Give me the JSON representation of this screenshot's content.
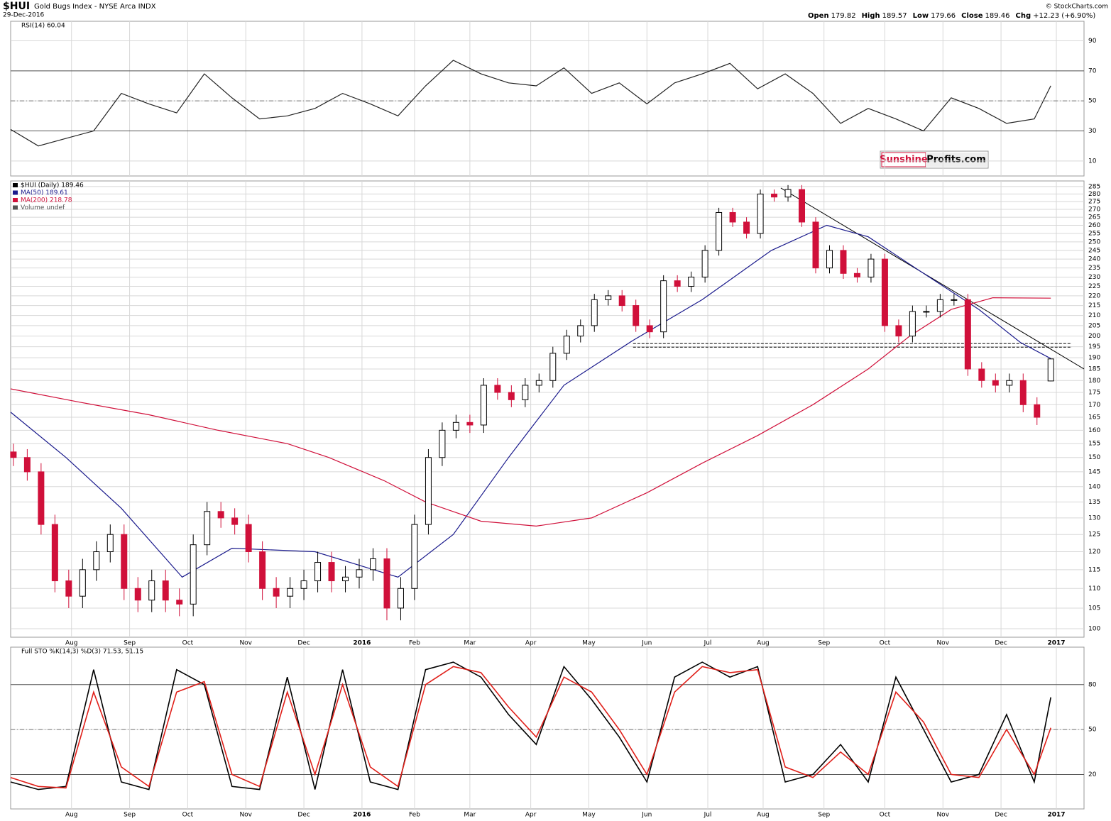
{
  "header": {
    "symbol": "$HUI",
    "name": "Gold Bugs Index - NYSE Arca INDX",
    "date": "29-Dec-2016",
    "quote": [
      [
        "Open",
        "179.82"
      ],
      [
        "High",
        "189.57"
      ],
      [
        "Low",
        "179.66"
      ],
      [
        "Close",
        "189.46"
      ],
      [
        "Chg",
        "+12.23 (+6.90%)"
      ]
    ],
    "source": "© StockCharts.com"
  },
  "watermark": [
    "Sunshine",
    "Profits.com"
  ],
  "chart_data": [
    {
      "type": "line",
      "title": "RSI(14) 60.04",
      "xlim": [
        0,
        388
      ],
      "ylim": [
        0,
        103
      ],
      "yticks": [
        10,
        30,
        50,
        70,
        90
      ],
      "levels": [
        30,
        50,
        70
      ],
      "series": [
        {
          "color": "#222222",
          "x": [
            0,
            10,
            20,
            30,
            40,
            50,
            60,
            70,
            80,
            90,
            100,
            110,
            120,
            130,
            140,
            150,
            160,
            170,
            180,
            190,
            200,
            210,
            220,
            230,
            240,
            250,
            260,
            270,
            280,
            290,
            300,
            310,
            320,
            330,
            340,
            350,
            360,
            370,
            376
          ],
          "values": [
            31,
            20,
            25,
            30,
            55,
            48,
            42,
            68,
            52,
            38,
            40,
            45,
            55,
            48,
            40,
            60,
            77,
            68,
            62,
            60,
            72,
            55,
            62,
            48,
            62,
            68,
            75,
            58,
            68,
            55,
            35,
            45,
            38,
            30,
            52,
            45,
            35,
            38,
            60.04
          ]
        }
      ]
    },
    {
      "type": "candlestick",
      "log_scale": true,
      "grid": true,
      "xlim": [
        0,
        388
      ],
      "ylim": [
        98,
        288.8
      ],
      "xticks": [
        {
          "value": 22,
          "label": "Aug"
        },
        {
          "value": 43,
          "label": "Sep"
        },
        {
          "value": 64,
          "label": "Oct"
        },
        {
          "value": 85,
          "label": "Nov"
        },
        {
          "value": 106,
          "label": "Dec"
        },
        {
          "value": 127,
          "label": "2016"
        },
        {
          "value": 146,
          "label": "Feb"
        },
        {
          "value": 166,
          "label": "Mar"
        },
        {
          "value": 188,
          "label": "Apr"
        },
        {
          "value": 209,
          "label": "May"
        },
        {
          "value": 230,
          "label": "Jun"
        },
        {
          "value": 252,
          "label": "Jul"
        },
        {
          "value": 272,
          "label": "Aug"
        },
        {
          "value": 294,
          "label": "Sep"
        },
        {
          "value": 316,
          "label": "Oct"
        },
        {
          "value": 337,
          "label": "Nov"
        },
        {
          "value": 358,
          "label": "Dec"
        },
        {
          "value": 378,
          "label": "2017"
        }
      ],
      "yticks": [
        100,
        105,
        110,
        115,
        120,
        125,
        130,
        135,
        140,
        145,
        150,
        155,
        160,
        165,
        170,
        175,
        180,
        185,
        190,
        195,
        200,
        205,
        210,
        215,
        220,
        225,
        230,
        235,
        240,
        245,
        250,
        255,
        260,
        265,
        270,
        275,
        280,
        285
      ],
      "candles": {
        "name": "$HUI (Daily) 189.46",
        "up_color": "#ffffff",
        "down_color": "#d0103a",
        "x": [
          1,
          6,
          11,
          16,
          21,
          26,
          31,
          36,
          41,
          46,
          51,
          56,
          61,
          66,
          71,
          76,
          81,
          86,
          91,
          96,
          101,
          106,
          111,
          116,
          121,
          126,
          131,
          136,
          141,
          146,
          151,
          156,
          161,
          166,
          171,
          176,
          181,
          186,
          191,
          196,
          201,
          206,
          211,
          216,
          221,
          226,
          231,
          236,
          241,
          246,
          251,
          256,
          261,
          266,
          271,
          276,
          281,
          286,
          291,
          296,
          301,
          306,
          311,
          316,
          321,
          326,
          331,
          336,
          341,
          346,
          351,
          356,
          361,
          366,
          371,
          376
        ],
        "open": [
          152,
          150,
          145,
          128,
          112,
          108,
          115,
          120,
          125,
          110,
          107,
          112,
          107,
          106,
          122,
          132,
          130,
          128,
          120,
          110,
          108,
          110,
          112,
          117,
          112,
          113,
          115,
          118,
          105,
          110,
          128,
          150,
          160,
          163,
          162,
          178,
          175,
          172,
          178,
          180,
          192,
          200,
          205,
          218,
          220,
          215,
          205,
          202,
          228,
          225,
          230,
          245,
          268,
          262,
          255,
          280,
          278,
          283,
          262,
          235,
          245,
          232,
          230,
          240,
          205,
          200,
          212,
          212,
          218,
          218,
          185,
          180,
          178,
          180,
          170,
          179.82
        ],
        "high": [
          155,
          153,
          148,
          131,
          115,
          118,
          123,
          128,
          128,
          113,
          115,
          115,
          110,
          125,
          135,
          135,
          133,
          131,
          123,
          113,
          113,
          115,
          120,
          120,
          116,
          118,
          121,
          121,
          113,
          131,
          153,
          163,
          166,
          166,
          181,
          181,
          178,
          181,
          183,
          195,
          203,
          208,
          221,
          223,
          223,
          218,
          208,
          231,
          231,
          233,
          248,
          271,
          271,
          265,
          283,
          283,
          286,
          286,
          265,
          248,
          248,
          235,
          243,
          243,
          208,
          215,
          215,
          221,
          221,
          221,
          188,
          183,
          183,
          183,
          173,
          189.57
        ],
        "low": [
          147,
          142,
          125,
          109,
          105,
          105,
          112,
          117,
          107,
          104,
          104,
          104,
          103,
          103,
          119,
          127,
          125,
          117,
          107,
          105,
          105,
          107,
          109,
          109,
          109,
          110,
          112,
          102,
          102,
          107,
          125,
          147,
          157,
          159,
          159,
          172,
          169,
          169,
          175,
          177,
          189,
          197,
          202,
          215,
          212,
          202,
          199,
          199,
          222,
          222,
          227,
          242,
          259,
          252,
          252,
          275,
          275,
          259,
          232,
          232,
          229,
          227,
          227,
          202,
          197,
          197,
          209,
          209,
          215,
          182,
          177,
          175,
          175,
          167,
          162,
          179.66
        ],
        "close": [
          150,
          145,
          128,
          112,
          108,
          115,
          120,
          125,
          110,
          107,
          112,
          107,
          106,
          122,
          132,
          130,
          128,
          120,
          110,
          108,
          110,
          112,
          117,
          112,
          113,
          115,
          118,
          105,
          110,
          128,
          150,
          160,
          163,
          162,
          178,
          175,
          172,
          178,
          180,
          192,
          200,
          205,
          218,
          220,
          215,
          205,
          202,
          228,
          225,
          230,
          245,
          268,
          262,
          255,
          280,
          278,
          283,
          262,
          235,
          245,
          232,
          230,
          240,
          205,
          200,
          212,
          212,
          218,
          218,
          185,
          180,
          178,
          180,
          170,
          165,
          189.46
        ]
      },
      "series": [
        {
          "name": "MA(50) 189.61",
          "color": "#1a1a8c",
          "x": [
            0,
            20,
            40,
            62,
            80,
            110,
            140,
            160,
            180,
            200,
            225,
            250,
            275,
            295,
            310,
            330,
            350,
            365,
            376
          ],
          "values": [
            167,
            150,
            133,
            113,
            121,
            120,
            113,
            125,
            150,
            178,
            198,
            218,
            245,
            260,
            253,
            232,
            213,
            197,
            189.61
          ]
        },
        {
          "name": "MA(200) 218.78",
          "color": "#d0103a",
          "x": [
            0,
            25,
            50,
            75,
            100,
            115,
            135,
            150,
            170,
            190,
            210,
            230,
            250,
            270,
            290,
            310,
            325,
            340,
            355,
            376
          ],
          "values": [
            176.5,
            171,
            166,
            160,
            155,
            150,
            142,
            135,
            129,
            127.5,
            130,
            138,
            148,
            158,
            170,
            185,
            200,
            213,
            219,
            218.78
          ]
        }
      ],
      "volume_label": "Volume undef",
      "lines": [
        {
          "color": "#000000",
          "dashed": false,
          "x": [
            278.4,
            388
          ],
          "y": [
            284,
            185
          ]
        },
        {
          "color": "#000000",
          "dashed": true,
          "x": [
            225,
            383.6
          ],
          "y": [
            196.5,
            196.5
          ]
        },
        {
          "color": "#000000",
          "dashed": true,
          "x": [
            225,
            383.6
          ],
          "y": [
            194.8,
            194.8
          ]
        }
      ]
    },
    {
      "type": "line",
      "title": "Full STO %K(14,3) %D(3) 71.53, 51.15",
      "xlim": [
        0,
        388
      ],
      "ylim": [
        -3,
        105
      ],
      "yticks": [
        20,
        50,
        80
      ],
      "levels": [
        20,
        50,
        80
      ],
      "xticks": [
        {
          "value": 22,
          "label": "Aug"
        },
        {
          "value": 43,
          "label": "Sep"
        },
        {
          "value": 64,
          "label": "Oct"
        },
        {
          "value": 85,
          "label": "Nov"
        },
        {
          "value": 106,
          "label": "Dec"
        },
        {
          "value": 127,
          "label": "2016"
        },
        {
          "value": 146,
          "label": "Feb"
        },
        {
          "value": 166,
          "label": "Mar"
        },
        {
          "value": 188,
          "label": "Apr"
        },
        {
          "value": 209,
          "label": "May"
        },
        {
          "value": 230,
          "label": "Jun"
        },
        {
          "value": 252,
          "label": "Jul"
        },
        {
          "value": 272,
          "label": "Aug"
        },
        {
          "value": 294,
          "label": "Sep"
        },
        {
          "value": 316,
          "label": "Oct"
        },
        {
          "value": 337,
          "label": "Nov"
        },
        {
          "value": 358,
          "label": "Dec"
        },
        {
          "value": 378,
          "label": "2017"
        }
      ],
      "series": [
        {
          "color": "#000000",
          "x": [
            0,
            10,
            20,
            30,
            40,
            50,
            60,
            70,
            80,
            90,
            100,
            110,
            120,
            130,
            140,
            150,
            160,
            170,
            180,
            190,
            200,
            210,
            220,
            230,
            240,
            250,
            260,
            270,
            280,
            290,
            300,
            310,
            320,
            330,
            340,
            350,
            360,
            370,
            376
          ],
          "values": [
            15,
            10,
            12,
            90,
            15,
            10,
            90,
            80,
            12,
            10,
            85,
            10,
            90,
            15,
            10,
            90,
            95,
            85,
            60,
            40,
            92,
            70,
            45,
            15,
            85,
            95,
            85,
            92,
            15,
            20,
            40,
            15,
            85,
            50,
            15,
            20,
            60,
            15,
            71.53
          ]
        },
        {
          "color": "#e0201a",
          "x": [
            0,
            10,
            20,
            30,
            40,
            50,
            60,
            70,
            80,
            90,
            100,
            110,
            120,
            130,
            140,
            150,
            160,
            170,
            180,
            190,
            200,
            210,
            220,
            230,
            240,
            250,
            260,
            270,
            280,
            290,
            300,
            310,
            320,
            330,
            340,
            350,
            360,
            370,
            376
          ],
          "values": [
            18,
            12,
            11,
            75,
            25,
            12,
            75,
            82,
            20,
            12,
            75,
            20,
            80,
            25,
            12,
            80,
            92,
            88,
            65,
            45,
            85,
            75,
            50,
            20,
            75,
            92,
            88,
            90,
            25,
            18,
            35,
            20,
            75,
            55,
            20,
            18,
            50,
            20,
            51.15
          ]
        }
      ]
    }
  ]
}
